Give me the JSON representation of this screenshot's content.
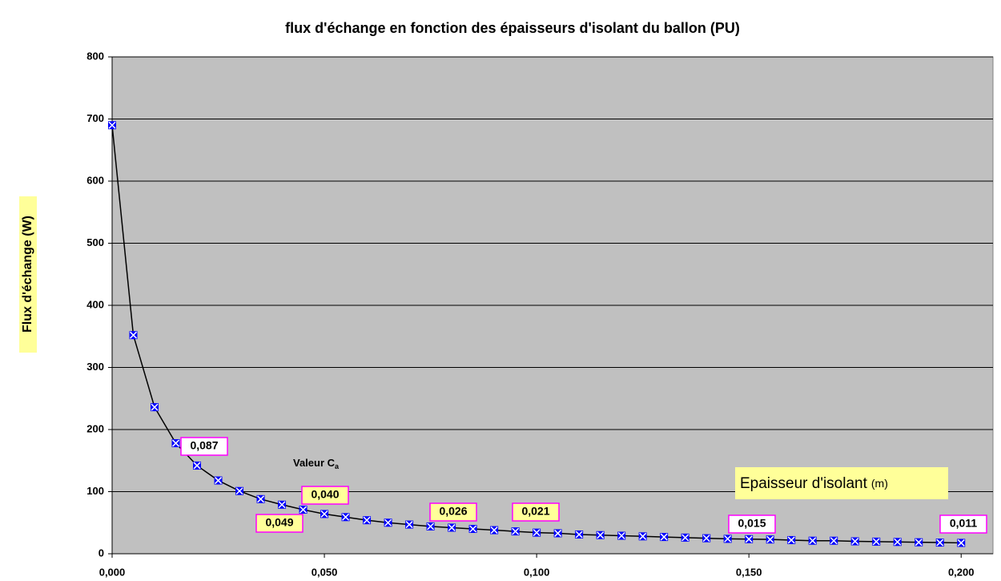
{
  "chart_data": {
    "type": "line",
    "title": "flux d'échange en fonction des épaisseurs d'isolant du ballon (PU)",
    "y_label": "Flux d'échange (W)",
    "x_label": {
      "text": "Epaisseur d'isolant",
      "unit": "(m)"
    },
    "x": [
      0,
      0.005,
      0.01,
      0.015,
      0.02,
      0.025,
      0.03,
      0.035,
      0.04,
      0.045,
      0.05,
      0.055,
      0.06,
      0.065,
      0.07,
      0.075,
      0.08,
      0.085,
      0.09,
      0.095,
      0.1,
      0.105,
      0.11,
      0.115,
      0.12,
      0.125,
      0.13,
      0.135,
      0.14,
      0.145,
      0.15,
      0.155,
      0.16,
      0.165,
      0.17,
      0.175,
      0.18,
      0.185,
      0.19,
      0.195,
      0.2
    ],
    "series": [
      {
        "name": "Flux",
        "color": "#0000ff",
        "line_color": "#000000",
        "values": [
          690,
          352,
          236,
          178,
          142,
          118,
          101,
          88,
          79,
          71,
          64,
          59,
          54,
          50,
          47,
          44,
          42,
          40,
          38,
          36,
          34,
          33,
          31,
          30,
          29,
          28,
          27,
          26,
          25,
          24,
          23.5,
          23,
          22,
          21,
          21,
          20,
          19.5,
          19,
          18.5,
          18,
          17.5
        ]
      }
    ],
    "xlim": [
      0,
      0.2075
    ],
    "ylim": [
      0,
      800
    ],
    "xticks": [
      {
        "value": 0,
        "label": "0,000"
      },
      {
        "value": 0.05,
        "label": "0,050"
      },
      {
        "value": 0.1,
        "label": "0,100"
      },
      {
        "value": 0.15,
        "label": "0,150"
      },
      {
        "value": 0.2,
        "label": "0,200"
      }
    ],
    "yticks": [
      0,
      100,
      200,
      300,
      400,
      500,
      600,
      700,
      800
    ],
    "grid": true,
    "plot_background": "#c0c0c0",
    "annotations": [
      {
        "text": "0,087",
        "fill": "#ffffff"
      },
      {
        "text": "0,049",
        "fill": "#ffff99"
      },
      {
        "text": "0,040",
        "fill": "#ffff99"
      },
      {
        "text": "0,026",
        "fill": "#ffff99"
      },
      {
        "text": "0,021",
        "fill": "#ffff99"
      },
      {
        "text": "0,015",
        "fill": "#ffffff"
      },
      {
        "text": "0,011",
        "fill": "#ffffff"
      }
    ],
    "note": {
      "text": "Valeur C",
      "sub": "a"
    }
  }
}
